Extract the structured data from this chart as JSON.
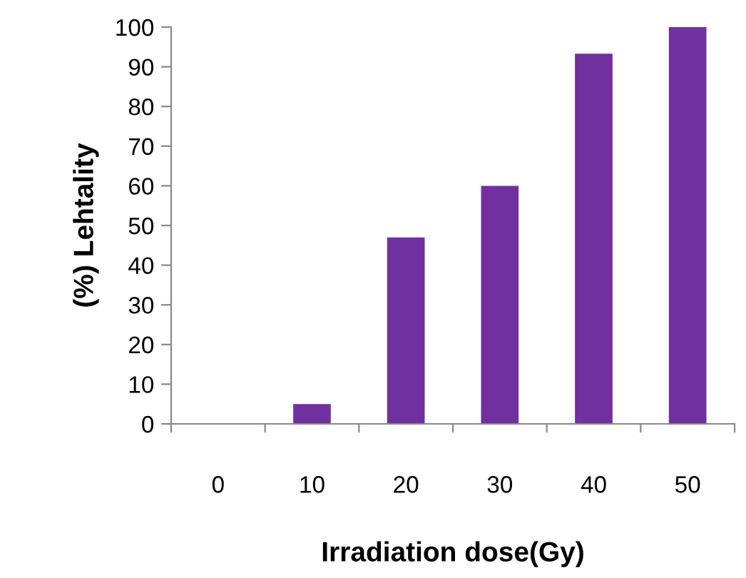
{
  "chart_data": {
    "type": "bar",
    "xlabel": "Irradiation dose(Gy)",
    "ylabel": "(%) Lehtality",
    "categories": [
      "0",
      "10",
      "20",
      "30",
      "40",
      "50"
    ],
    "values": [
      0,
      5,
      47,
      60,
      93.3,
      100
    ],
    "color": "#7030a0",
    "ylim": [
      0,
      100
    ],
    "yticks": [
      0,
      10,
      20,
      30,
      40,
      50,
      60,
      70,
      80,
      90,
      100
    ],
    "grid": false,
    "legend": false
  }
}
